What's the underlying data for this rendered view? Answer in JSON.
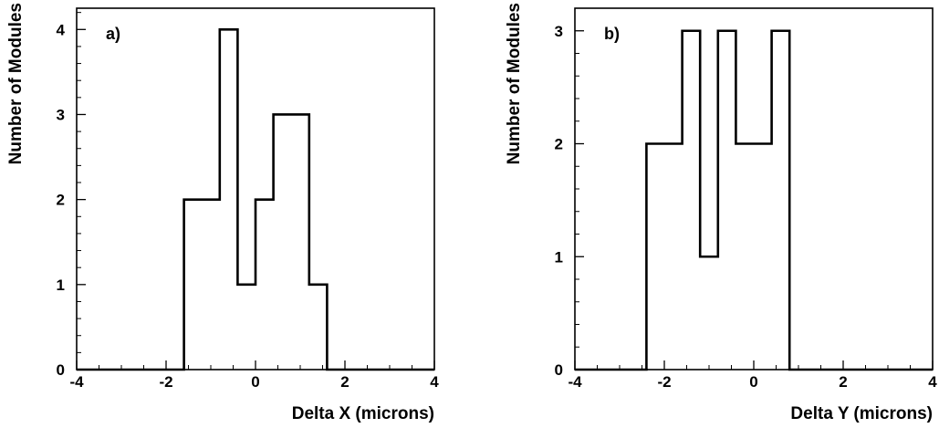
{
  "chart_data": [
    {
      "type": "histogram",
      "panel_label": "a)",
      "xlabel": "Delta X (microns)",
      "ylabel": "Number of Modules",
      "xlim": [
        -4,
        4
      ],
      "ylim": [
        0,
        4.25
      ],
      "xticks": [
        -4,
        -2,
        0,
        2,
        4
      ],
      "yticks": [
        0,
        1,
        2,
        3,
        4
      ],
      "bin_width": 0.4,
      "bins": [
        {
          "x": -4.0,
          "value": 0
        },
        {
          "x": -3.6,
          "value": 0
        },
        {
          "x": -3.2,
          "value": 0
        },
        {
          "x": -2.8,
          "value": 0
        },
        {
          "x": -2.4,
          "value": 0
        },
        {
          "x": -2.0,
          "value": 0
        },
        {
          "x": -1.6,
          "value": 2
        },
        {
          "x": -1.2,
          "value": 2
        },
        {
          "x": -0.8,
          "value": 4
        },
        {
          "x": -0.4,
          "value": 1
        },
        {
          "x": 0.0,
          "value": 2
        },
        {
          "x": 0.4,
          "value": 3
        },
        {
          "x": 0.8,
          "value": 3
        },
        {
          "x": 1.2,
          "value": 1
        },
        {
          "x": 1.6,
          "value": 0
        },
        {
          "x": 2.0,
          "value": 0
        },
        {
          "x": 2.4,
          "value": 0
        },
        {
          "x": 2.8,
          "value": 0
        },
        {
          "x": 3.2,
          "value": 0
        },
        {
          "x": 3.6,
          "value": 0
        }
      ],
      "grid": false
    },
    {
      "type": "histogram",
      "panel_label": "b)",
      "xlabel": "Delta Y (microns)",
      "ylabel": "Number of Modules",
      "xlim": [
        -4,
        4
      ],
      "ylim": [
        0,
        3.2
      ],
      "xticks": [
        -4,
        -2,
        0,
        2,
        4
      ],
      "yticks": [
        0,
        1,
        2,
        3
      ],
      "bin_width": 0.4,
      "bins": [
        {
          "x": -4.0,
          "value": 0
        },
        {
          "x": -3.6,
          "value": 0
        },
        {
          "x": -3.2,
          "value": 0
        },
        {
          "x": -2.8,
          "value": 0
        },
        {
          "x": -2.4,
          "value": 2
        },
        {
          "x": -2.0,
          "value": 2
        },
        {
          "x": -1.6,
          "value": 3
        },
        {
          "x": -1.2,
          "value": 1
        },
        {
          "x": -0.8,
          "value": 3
        },
        {
          "x": -0.4,
          "value": 2
        },
        {
          "x": 0.0,
          "value": 2
        },
        {
          "x": 0.4,
          "value": 3
        },
        {
          "x": 0.8,
          "value": 0
        },
        {
          "x": 1.2,
          "value": 0
        },
        {
          "x": 1.6,
          "value": 0
        },
        {
          "x": 2.0,
          "value": 0
        },
        {
          "x": 2.4,
          "value": 0
        },
        {
          "x": 2.8,
          "value": 0
        },
        {
          "x": 3.2,
          "value": 0
        },
        {
          "x": 3.6,
          "value": 0
        }
      ],
      "grid": false
    }
  ]
}
